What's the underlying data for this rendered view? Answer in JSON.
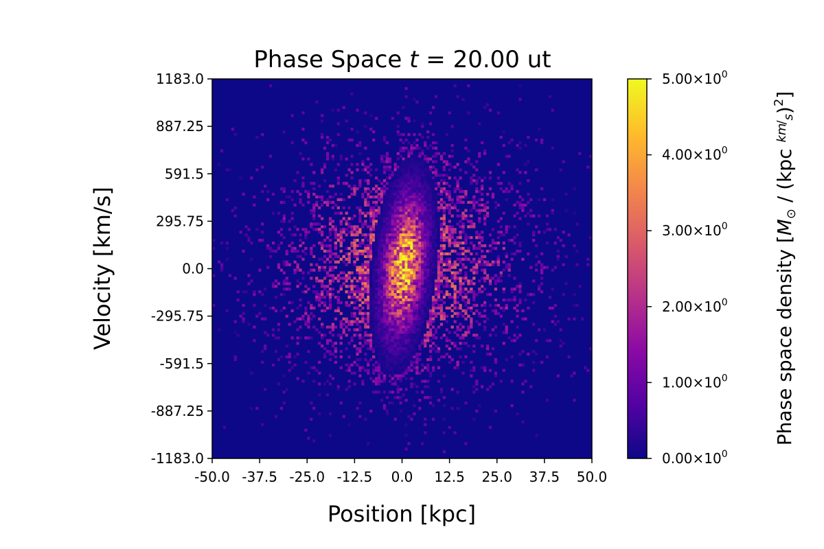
{
  "chart_data": {
    "type": "heatmap",
    "title_prefix": "Phase Space ",
    "title_var": "t",
    "title_eq": " =  20.00 ut",
    "xlabel": "Position [kpc]",
    "ylabel": "Velocity [km/s]",
    "xlim": [
      -50.0,
      50.0
    ],
    "ylim": [
      -1183.0,
      1183.0
    ],
    "xticks": [
      -50.0,
      -37.5,
      -25.0,
      -12.5,
      0.0,
      12.5,
      25.0,
      37.5,
      50.0
    ],
    "xtick_labels": [
      "-50.0",
      "-37.5",
      "-25.0",
      "-12.5",
      "0.0",
      "12.5",
      "25.0",
      "37.5",
      "50.0"
    ],
    "yticks": [
      -1183.0,
      -887.25,
      -591.5,
      -295.75,
      0.0,
      295.75,
      591.5,
      887.25,
      1183.0
    ],
    "ytick_labels": [
      "-1183.0",
      "-887.25",
      "-591.5",
      "-295.75",
      "0.0",
      "295.75",
      "591.5",
      "887.25",
      "1183.0"
    ],
    "colormap": "plasma",
    "colormap_stops": [
      "#0d0887",
      "#5302a3",
      "#8b0aa5",
      "#b83289",
      "#db5c68",
      "#f48849",
      "#febd2a",
      "#f0f921"
    ],
    "clim": [
      0.0,
      5.0
    ],
    "colorbar_ticks": [
      0.0,
      1.0,
      2.0,
      3.0,
      4.0,
      5.0
    ],
    "colorbar_tick_mantissas": [
      "0.00",
      "1.00",
      "2.00",
      "3.00",
      "4.00",
      "5.00"
    ],
    "colorbar_tick_times": "×10",
    "colorbar_tick_exponent": "0",
    "colorbar_label_prefix": "Phase space density [",
    "colorbar_label_M": "M",
    "colorbar_label_sun": "⊙",
    "colorbar_label_mid": " / (kpc  ",
    "colorbar_label_km": "km",
    "colorbar_label_s": "s",
    "colorbar_label_close": ")",
    "colorbar_label_exp": "2",
    "colorbar_label_end": "]",
    "distribution": {
      "x_center": 0.5,
      "v_center": 20.0,
      "x_sigma_core": 3.5,
      "v_sigma_core": 260.0,
      "xv_correlation": 0.3,
      "peak_density": 5.0,
      "halo_x_sigma": 20.0,
      "halo_v_sigma": 420.0,
      "halo_amplitude": 1.2
    },
    "grid": false,
    "colorbar_position": "right"
  }
}
